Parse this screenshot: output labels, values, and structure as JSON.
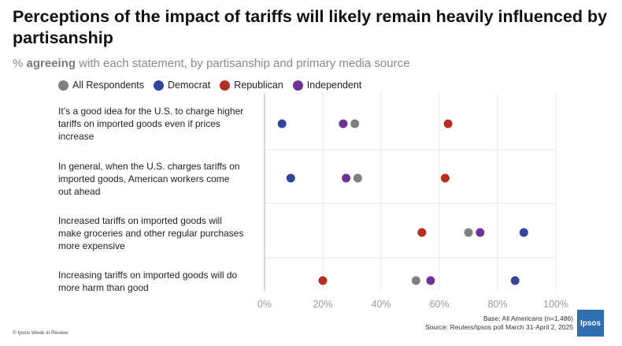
{
  "title": "Perceptions of the impact of tariffs will likely remain heavily influenced by partisanship",
  "subtitle_prefix": "% ",
  "subtitle_bold": "agreeing",
  "subtitle_rest": " with each statement, by partisanship and primary media source",
  "colors": {
    "All Respondents": "#7f7f7f",
    "Democrat": "#2f4699",
    "Republican": "#b42e22",
    "Independent": "#6f3196"
  },
  "legend": [
    "All Respondents",
    "Democrat",
    "Republican",
    "Independent"
  ],
  "chart_data": {
    "type": "scatter",
    "xlim": [
      0,
      100
    ],
    "x_ticks": [
      "0%",
      "20%",
      "40%",
      "60%",
      "80%",
      "100%"
    ],
    "grid": true,
    "legend_position": "top-left",
    "categories": [
      "It’s a good idea for the U.S. to charge higher tariffs on imported goods even if prices increase",
      "In general, when the U.S. charges tariffs on imported goods, American workers come out ahead",
      "Increased tariffs on imported goods will make groceries and other regular purchases more expensive",
      "Increasing tariffs on imported goods will do more harm than good"
    ],
    "category_lines": [
      [
        "It’s a good idea for the U.S. to charge higher",
        "tariffs on imported goods even if prices",
        "increase"
      ],
      [
        "In general, when the U.S. charges tariffs on",
        "imported goods, American workers come",
        "out ahead"
      ],
      [
        "Increased tariffs on imported goods will",
        "make groceries and other regular purchases",
        "more expensive"
      ],
      [
        "Increasing tariffs on imported goods will do",
        "more harm than good"
      ]
    ],
    "series": [
      {
        "name": "All Respondents",
        "values": [
          31,
          32,
          70,
          52
        ]
      },
      {
        "name": "Democrat",
        "values": [
          6,
          9,
          89,
          86
        ]
      },
      {
        "name": "Republican",
        "values": [
          63,
          62,
          54,
          20
        ]
      },
      {
        "name": "Independent",
        "values": [
          27,
          28,
          74,
          57
        ]
      }
    ]
  },
  "footer": {
    "copyright": "© Ipsos Week in Review",
    "base": "Base: All Americans (n=1,486)",
    "source": "Source: Reuters/Ipsos poll March 31-April 2, 2025",
    "logo_text": "Ipsos"
  }
}
